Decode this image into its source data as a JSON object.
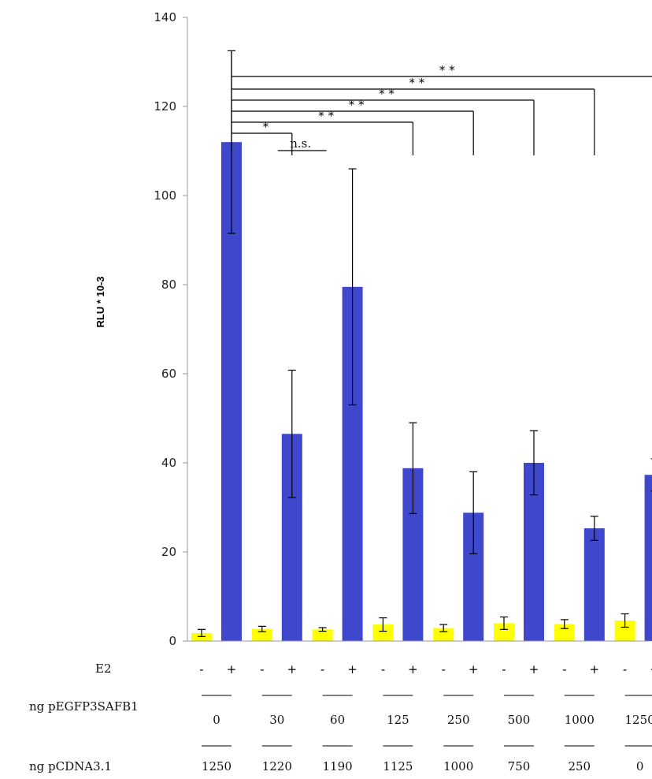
{
  "chart_data": {
    "type": "bar",
    "ylabel": "RLU * 10-3",
    "ylim": [
      0,
      140
    ],
    "yticks": [
      0,
      20,
      40,
      60,
      80,
      100,
      120,
      140
    ],
    "grid": false,
    "legend": "none",
    "groups": [
      {
        "pegfp": "0",
        "pcdna": "1250"
      },
      {
        "pegfp": "30",
        "pcdna": "1220"
      },
      {
        "pegfp": "60",
        "pcdna": "1190"
      },
      {
        "pegfp": "125",
        "pcdna": "1125"
      },
      {
        "pegfp": "250",
        "pcdna": "1000"
      },
      {
        "pegfp": "500",
        "pcdna": "750"
      },
      {
        "pegfp": "1000",
        "pcdna": "250"
      },
      {
        "pegfp": "1250",
        "pcdna": "0"
      }
    ],
    "series": [
      {
        "e2": "-",
        "color": "#ffff00",
        "values": [
          1.8,
          2.7,
          2.6,
          3.7,
          2.9,
          4.0,
          3.8,
          4.6
        ],
        "errors": [
          0.8,
          0.6,
          0.4,
          1.5,
          0.8,
          1.4,
          1.0,
          1.5
        ]
      },
      {
        "e2": "+",
        "color": "#3f48cc",
        "values": [
          112,
          46.5,
          79.5,
          38.8,
          28.8,
          40,
          25.3,
          37.3
        ],
        "errors": [
          20.5,
          14.3,
          26.5,
          10.2,
          9.2,
          7.2,
          2.7,
          3.6
        ]
      }
    ],
    "significance": [
      {
        "label": "*",
        "from_group": 0,
        "to_group": 1
      },
      {
        "label": "n.s.",
        "from_group": 1,
        "to_group": 2
      },
      {
        "label": "* *",
        "from_group": 0,
        "to_group": 3
      },
      {
        "label": "* *",
        "from_group": 0,
        "to_group": 4
      },
      {
        "label": "* *",
        "from_group": 0,
        "to_group": 5
      },
      {
        "label": "* *",
        "from_group": 0,
        "to_group": 6
      },
      {
        "label": "* *",
        "from_group": 0,
        "to_group": 7
      }
    ],
    "row_labels": {
      "e2": "E2",
      "pegfp": "ng pEGFP3SAFB1",
      "pcdna": "ng pCDNA3.1"
    }
  }
}
